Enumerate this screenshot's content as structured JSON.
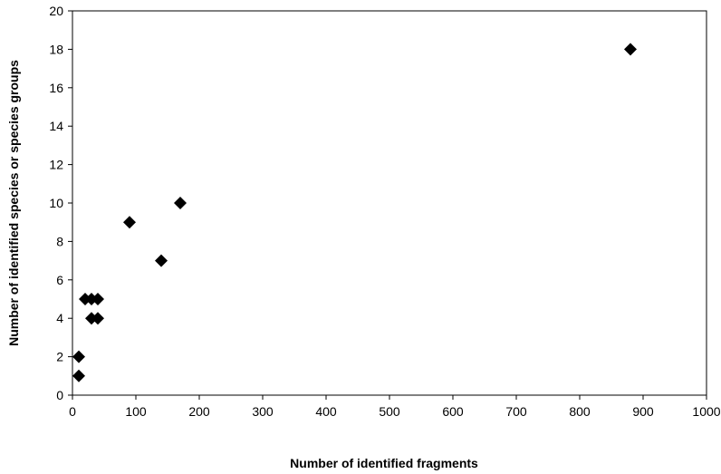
{
  "chart_data": {
    "type": "scatter",
    "title": "",
    "xlabel": "Number of identified fragments",
    "ylabel": "Number of identified species or species groups",
    "xlim": [
      0,
      1000
    ],
    "ylim": [
      0,
      20
    ],
    "x_ticks": [
      0,
      100,
      200,
      300,
      400,
      500,
      600,
      700,
      800,
      900,
      1000
    ],
    "y_ticks": [
      0,
      2,
      4,
      6,
      8,
      10,
      12,
      14,
      16,
      18,
      20
    ],
    "grid": false,
    "legend": "none",
    "marker": "diamond",
    "marker_color": "#000000",
    "series": [
      {
        "points": [
          {
            "x": 10,
            "y": 1
          },
          {
            "x": 10,
            "y": 2
          },
          {
            "x": 20,
            "y": 5
          },
          {
            "x": 30,
            "y": 4
          },
          {
            "x": 30,
            "y": 5
          },
          {
            "x": 40,
            "y": 4
          },
          {
            "x": 40,
            "y": 5
          },
          {
            "x": 90,
            "y": 9
          },
          {
            "x": 140,
            "y": 7
          },
          {
            "x": 170,
            "y": 10
          },
          {
            "x": 880,
            "y": 18
          }
        ]
      }
    ]
  }
}
